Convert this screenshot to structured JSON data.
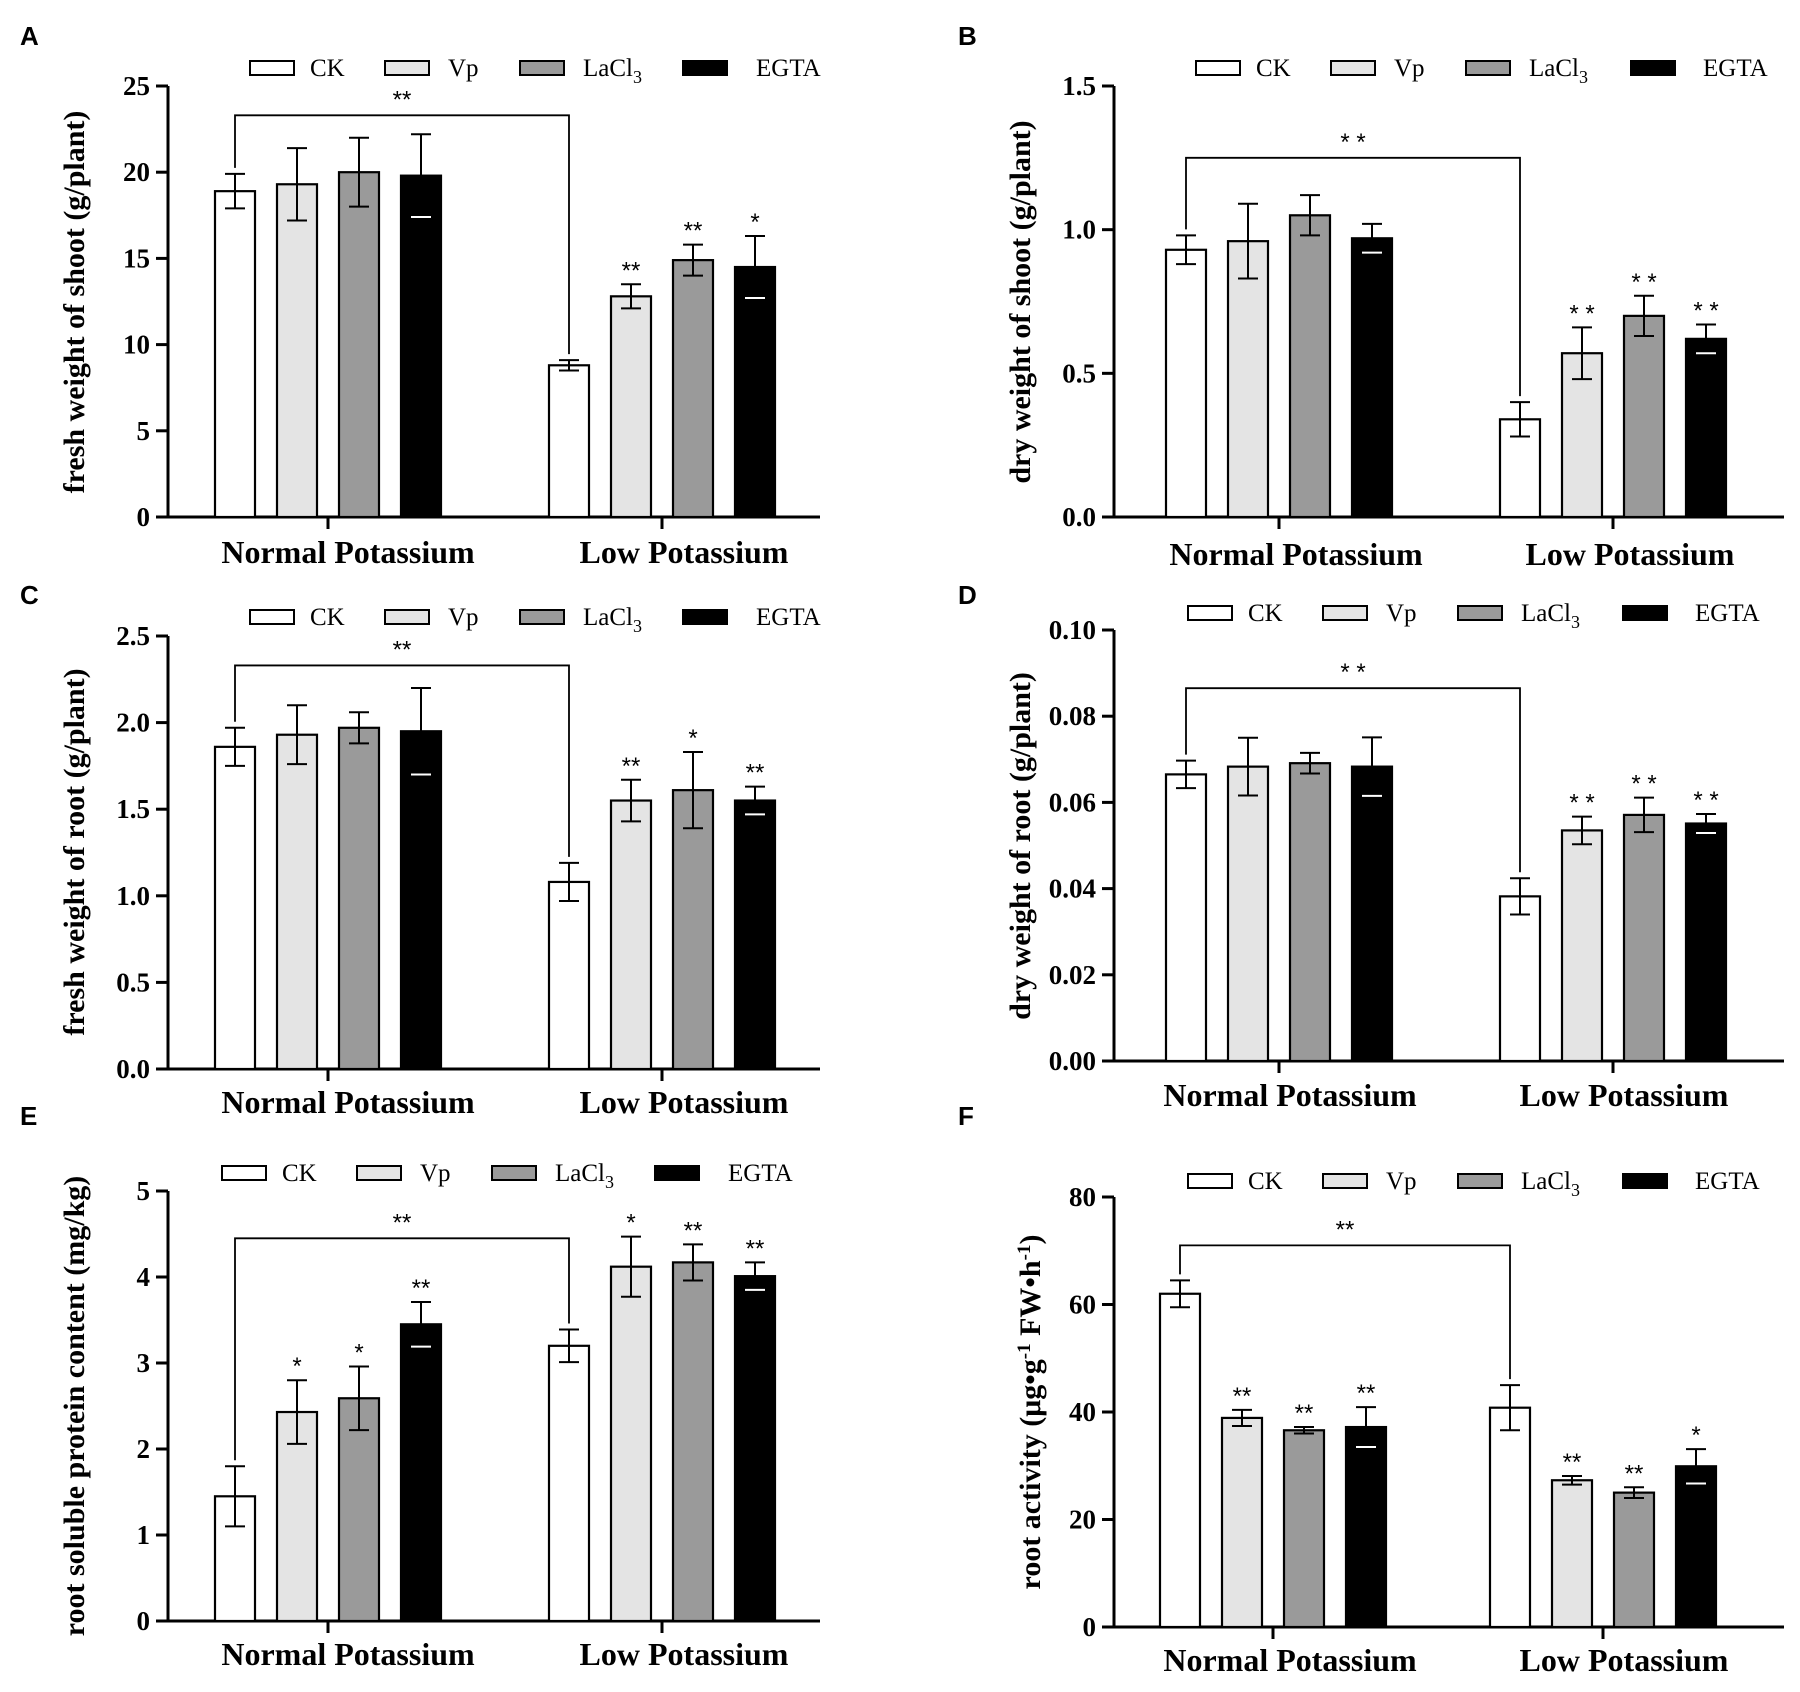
{
  "colors": {
    "CK": "#ffffff",
    "Vp": "#e4e4e4",
    "LaCl3": "#9a9a9a",
    "EGTA": "#000000"
  },
  "legend": [
    {
      "key": "CK",
      "text": "CK",
      "sub": ""
    },
    {
      "key": "Vp",
      "text": "Vp",
      "sub": ""
    },
    {
      "key": "LaCl3",
      "text": "LaCl",
      "sub": "3"
    },
    {
      "key": "EGTA",
      "text": "EGTA",
      "sub": ""
    }
  ],
  "chart_data": [
    {
      "panel": "A",
      "type": "bar",
      "ylabel": "fresh weight of shoot (g/plant)",
      "categories": [
        "Normal Potassium",
        "Low Potassium"
      ],
      "ylim": [
        0,
        25
      ],
      "yticks": [
        "0",
        "5",
        "10",
        "15",
        "20",
        "25"
      ],
      "ytick_values": [
        0,
        5,
        10,
        15,
        20,
        25
      ],
      "series": [
        {
          "name": "CK",
          "values": [
            18.9,
            8.8
          ],
          "errors": [
            1.0,
            0.3
          ],
          "sig": [
            "",
            ""
          ]
        },
        {
          "name": "Vp",
          "values": [
            19.3,
            12.8
          ],
          "errors": [
            2.1,
            0.7
          ],
          "sig": [
            "",
            "**"
          ]
        },
        {
          "name": "LaCl3",
          "values": [
            20.0,
            14.9
          ],
          "errors": [
            2.0,
            0.9
          ],
          "sig": [
            "",
            "**"
          ]
        },
        {
          "name": "EGTA",
          "values": [
            19.8,
            14.5
          ],
          "errors": [
            2.4,
            1.8
          ],
          "sig": [
            "",
            "*"
          ]
        }
      ],
      "bracket": {
        "label": "**",
        "value": 23.3
      }
    },
    {
      "panel": "B",
      "type": "bar",
      "ylabel": "dry weight of shoot (g/plant)",
      "categories": [
        "Normal Potassium",
        "Low Potassium"
      ],
      "ylim": [
        0,
        1.5
      ],
      "yticks": [
        "0.0",
        "0.5",
        "1.0",
        "1.5"
      ],
      "ytick_values": [
        0,
        0.5,
        1.0,
        1.5
      ],
      "series": [
        {
          "name": "CK",
          "values": [
            0.93,
            0.34
          ],
          "errors": [
            0.05,
            0.06
          ],
          "sig": [
            "",
            ""
          ]
        },
        {
          "name": "Vp",
          "values": [
            0.96,
            0.57
          ],
          "errors": [
            0.13,
            0.09
          ],
          "sig": [
            "",
            "* *"
          ]
        },
        {
          "name": "LaCl3",
          "values": [
            1.05,
            0.7
          ],
          "errors": [
            0.07,
            0.07
          ],
          "sig": [
            "",
            "* *"
          ]
        },
        {
          "name": "EGTA",
          "values": [
            0.97,
            0.62
          ],
          "errors": [
            0.05,
            0.05
          ],
          "sig": [
            "",
            "* *"
          ]
        }
      ],
      "bracket": {
        "label": "* *",
        "value": 1.25
      }
    },
    {
      "panel": "C",
      "type": "bar",
      "ylabel": "fresh weight of root (g/plant)",
      "categories": [
        "Normal Potassium",
        "Low Potassium"
      ],
      "ylim": [
        0,
        2.5
      ],
      "yticks": [
        "0.0",
        "0.5",
        "1.0",
        "1.5",
        "2.0",
        "2.5"
      ],
      "ytick_values": [
        0,
        0.5,
        1.0,
        1.5,
        2.0,
        2.5
      ],
      "series": [
        {
          "name": "CK",
          "values": [
            1.86,
            1.08
          ],
          "errors": [
            0.11,
            0.11
          ],
          "sig": [
            "",
            ""
          ]
        },
        {
          "name": "Vp",
          "values": [
            1.93,
            1.55
          ],
          "errors": [
            0.17,
            0.12
          ],
          "sig": [
            "",
            "**"
          ]
        },
        {
          "name": "LaCl3",
          "values": [
            1.97,
            1.61
          ],
          "errors": [
            0.09,
            0.22
          ],
          "sig": [
            "",
            "*"
          ]
        },
        {
          "name": "EGTA",
          "values": [
            1.95,
            1.55
          ],
          "errors": [
            0.25,
            0.08
          ],
          "sig": [
            "",
            "**"
          ]
        }
      ],
      "bracket": {
        "label": "**",
        "value": 2.33
      }
    },
    {
      "panel": "D",
      "type": "bar",
      "ylabel": "dry weight of root (g/plant)",
      "categories": [
        "Normal Potassium",
        "Low Potassium"
      ],
      "ylim": [
        0,
        0.1
      ],
      "yticks": [
        "0.00",
        "0.02",
        "0.04",
        "0.06",
        "0.08",
        "0.10"
      ],
      "ytick_values": [
        0,
        0.02,
        0.04,
        0.06,
        0.08,
        0.1
      ],
      "series": [
        {
          "name": "CK",
          "values": [
            0.0665,
            0.0382
          ],
          "errors": [
            0.0032,
            0.0042
          ],
          "sig": [
            "",
            ""
          ]
        },
        {
          "name": "Vp",
          "values": [
            0.0683,
            0.0535
          ],
          "errors": [
            0.0067,
            0.0032
          ],
          "sig": [
            "",
            "* *"
          ]
        },
        {
          "name": "LaCl3",
          "values": [
            0.0691,
            0.0571
          ],
          "errors": [
            0.0024,
            0.004
          ],
          "sig": [
            "",
            "* *"
          ]
        },
        {
          "name": "EGTA",
          "values": [
            0.0683,
            0.0551
          ],
          "errors": [
            0.0068,
            0.0022
          ],
          "sig": [
            "",
            "* *"
          ]
        }
      ],
      "bracket": {
        "label": "* *",
        "value": 0.0865
      }
    },
    {
      "panel": "E",
      "type": "bar",
      "ylabel": "root soluble protein content (mg/kg)",
      "categories": [
        "Normal Potassium",
        "Low Potassium"
      ],
      "ylim": [
        0,
        5
      ],
      "yticks": [
        "0",
        "1",
        "2",
        "3",
        "4",
        "5"
      ],
      "ytick_values": [
        0,
        1,
        2,
        3,
        4,
        5
      ],
      "series": [
        {
          "name": "CK",
          "values": [
            1.45,
            3.2
          ],
          "errors": [
            0.35,
            0.19
          ],
          "sig": [
            "",
            ""
          ]
        },
        {
          "name": "Vp",
          "values": [
            2.43,
            4.12
          ],
          "errors": [
            0.37,
            0.35
          ],
          "sig": [
            "*",
            "*"
          ]
        },
        {
          "name": "LaCl3",
          "values": [
            2.59,
            4.17
          ],
          "errors": [
            0.37,
            0.21
          ],
          "sig": [
            "*",
            "**"
          ]
        },
        {
          "name": "EGTA",
          "values": [
            3.45,
            4.01
          ],
          "errors": [
            0.26,
            0.16
          ],
          "sig": [
            "**",
            "**"
          ]
        }
      ],
      "bracket": {
        "label": "**",
        "value": 4.45
      }
    },
    {
      "panel": "F",
      "type": "bar",
      "ylabel": "root activity  (μg•g",
      "ylabel_sup1": "-1",
      "ylabel_mid": " FW•h",
      "ylabel_sup2": "-1",
      "ylabel_end": ")",
      "categories": [
        "Normal Potassium",
        "Low Potassium"
      ],
      "ylim": [
        0,
        80
      ],
      "yticks": [
        "0",
        "20",
        "40",
        "60",
        "80"
      ],
      "ytick_values": [
        0,
        20,
        40,
        60,
        80
      ],
      "series": [
        {
          "name": "CK",
          "values": [
            62.0,
            40.8
          ],
          "errors": [
            2.5,
            4.2
          ],
          "sig": [
            "",
            ""
          ]
        },
        {
          "name": "Vp",
          "values": [
            38.9,
            27.3
          ],
          "errors": [
            1.5,
            0.8
          ],
          "sig": [
            "**",
            "**"
          ]
        },
        {
          "name": "LaCl3",
          "values": [
            36.6,
            25.0
          ],
          "errors": [
            0.6,
            1.0
          ],
          "sig": [
            "**",
            "**"
          ]
        },
        {
          "name": "EGTA",
          "values": [
            37.2,
            29.9
          ],
          "errors": [
            3.7,
            3.2
          ],
          "sig": [
            "**",
            "*"
          ]
        }
      ],
      "bracket": {
        "label": "**",
        "value": 71.0
      }
    }
  ]
}
